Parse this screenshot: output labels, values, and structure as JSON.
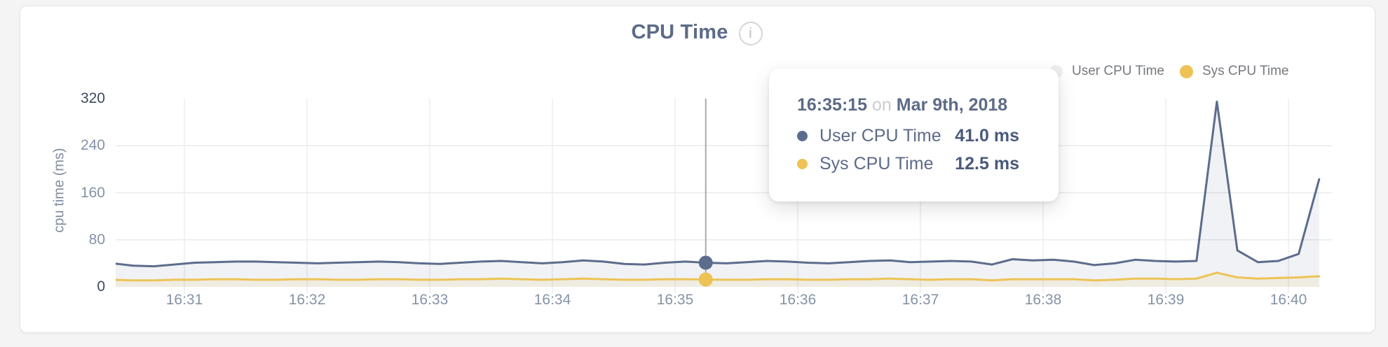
{
  "header": {
    "title": "CPU Time",
    "info_glyph": "i"
  },
  "legend": {
    "items": [
      {
        "label": "User CPU Time",
        "dot_color": "#ECEEF0",
        "series": "user"
      },
      {
        "label": "Sys CPU Time",
        "dot_color": "#EDC355",
        "series": "sys"
      }
    ]
  },
  "tooltip": {
    "time": "16:35:15",
    "connector": "on",
    "date": "Mar 9th, 2018",
    "rows": [
      {
        "label": "User CPU Time",
        "value": "41.0 ms",
        "color": "#5C6C8C"
      },
      {
        "label": "Sys CPU Time",
        "value": "12.5 ms",
        "color": "#EDC355"
      }
    ]
  },
  "colors": {
    "user_line": "#5C6C8C",
    "sys_line": "#EDC355",
    "user_fill": "rgba(92,108,140,0.09)",
    "sys_fill": "rgba(238,195,83,0.12)",
    "grid_h": "#E9EAEC",
    "grid_v": "#EDEDEF",
    "hover_line": "#A8AAAD",
    "title_text": "#5C6B87",
    "tick_text": "#8593A7",
    "tick_text_edge": "#3D4A63",
    "card_bg": "#FFFFFF",
    "page_bg": "#F4F4F5"
  },
  "chart_data": {
    "type": "area",
    "title": "CPU Time",
    "xlabel": "",
    "ylabel": "cpu time (ms)",
    "ylim": [
      0,
      320
    ],
    "y_ticks": [
      0,
      80,
      160,
      240,
      320
    ],
    "x_ticks": [
      "16:31",
      "16:32",
      "16:33",
      "16:34",
      "16:35",
      "16:36",
      "16:37",
      "16:38",
      "16:39",
      "16:40"
    ],
    "grid": true,
    "legend_position": "top-right",
    "times": [
      "16:30:25",
      "16:30:35",
      "16:30:45",
      "16:30:55",
      "16:31:05",
      "16:31:15",
      "16:31:25",
      "16:31:35",
      "16:31:45",
      "16:31:55",
      "16:32:05",
      "16:32:15",
      "16:32:25",
      "16:32:35",
      "16:32:45",
      "16:32:55",
      "16:33:05",
      "16:33:15",
      "16:33:25",
      "16:33:35",
      "16:33:45",
      "16:33:55",
      "16:34:05",
      "16:34:15",
      "16:34:25",
      "16:34:35",
      "16:34:45",
      "16:34:55",
      "16:35:05",
      "16:35:15",
      "16:35:25",
      "16:35:35",
      "16:35:45",
      "16:35:55",
      "16:36:05",
      "16:36:15",
      "16:36:25",
      "16:36:35",
      "16:36:45",
      "16:36:55",
      "16:37:05",
      "16:37:15",
      "16:37:25",
      "16:37:35",
      "16:37:45",
      "16:37:55",
      "16:38:05",
      "16:38:15",
      "16:38:25",
      "16:38:35",
      "16:38:45",
      "16:38:55",
      "16:39:05",
      "16:39:15",
      "16:39:25",
      "16:39:35",
      "16:39:45",
      "16:39:55",
      "16:40:05",
      "16:40:15"
    ],
    "series": [
      {
        "name": "User CPU Time",
        "color": "#5C6C8C",
        "unit": "ms",
        "values": [
          40,
          36,
          35,
          38,
          41,
          42,
          43,
          43,
          42,
          41,
          40,
          41,
          42,
          43,
          42,
          40,
          39,
          41,
          43,
          44,
          42,
          40,
          42,
          45,
          43,
          39,
          38,
          41,
          43,
          41,
          40,
          42,
          44,
          43,
          41,
          40,
          42,
          44,
          45,
          42,
          43,
          44,
          43,
          38,
          47,
          45,
          46,
          43,
          37,
          40,
          46,
          44,
          43,
          44,
          315,
          62,
          42,
          44,
          56,
          183
        ]
      },
      {
        "name": "Sys CPU Time",
        "color": "#EDC355",
        "unit": "ms",
        "values": [
          12,
          11,
          11,
          12,
          12,
          13,
          13,
          12,
          12,
          13,
          13,
          12,
          12,
          13,
          13,
          12,
          12,
          13,
          13,
          14,
          13,
          12,
          13,
          14,
          13,
          12,
          12,
          13,
          13,
          12.5,
          12,
          12,
          13,
          13,
          12,
          12,
          13,
          13,
          14,
          13,
          12,
          13,
          13,
          11,
          13,
          13,
          13,
          13,
          11,
          12,
          14,
          14,
          13,
          14,
          24,
          16,
          14,
          15,
          16,
          18
        ]
      }
    ],
    "hover": {
      "time": "16:35:15",
      "index": 29,
      "user_ms": 41.0,
      "sys_ms": 12.5
    }
  }
}
